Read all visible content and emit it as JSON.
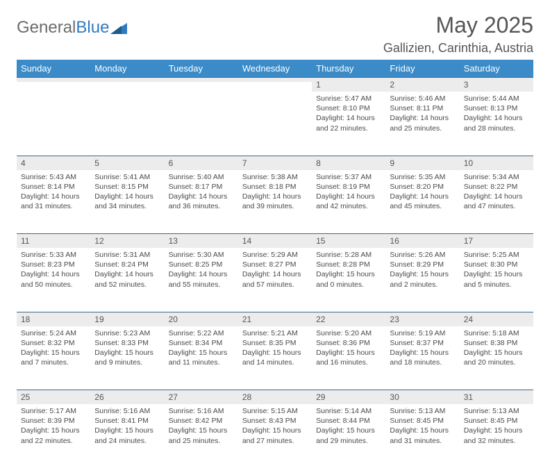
{
  "logo": {
    "word1": "General",
    "word2": "Blue"
  },
  "title": "May 2025",
  "location": "Gallizien, Carinthia, Austria",
  "colors": {
    "header_bg": "#3b8bc8",
    "header_text": "#ffffff",
    "daynum_bg": "#ececec",
    "border": "#3b6a8f",
    "text": "#4a4a4a",
    "logo_gray": "#6b6b6b",
    "logo_blue": "#2f7bbf"
  },
  "day_names": [
    "Sunday",
    "Monday",
    "Tuesday",
    "Wednesday",
    "Thursday",
    "Friday",
    "Saturday"
  ],
  "weeks": [
    [
      {
        "n": "",
        "sr": "",
        "ss": "",
        "dl": ""
      },
      {
        "n": "",
        "sr": "",
        "ss": "",
        "dl": ""
      },
      {
        "n": "",
        "sr": "",
        "ss": "",
        "dl": ""
      },
      {
        "n": "",
        "sr": "",
        "ss": "",
        "dl": ""
      },
      {
        "n": "1",
        "sr": "Sunrise: 5:47 AM",
        "ss": "Sunset: 8:10 PM",
        "dl": "Daylight: 14 hours and 22 minutes."
      },
      {
        "n": "2",
        "sr": "Sunrise: 5:46 AM",
        "ss": "Sunset: 8:11 PM",
        "dl": "Daylight: 14 hours and 25 minutes."
      },
      {
        "n": "3",
        "sr": "Sunrise: 5:44 AM",
        "ss": "Sunset: 8:13 PM",
        "dl": "Daylight: 14 hours and 28 minutes."
      }
    ],
    [
      {
        "n": "4",
        "sr": "Sunrise: 5:43 AM",
        "ss": "Sunset: 8:14 PM",
        "dl": "Daylight: 14 hours and 31 minutes."
      },
      {
        "n": "5",
        "sr": "Sunrise: 5:41 AM",
        "ss": "Sunset: 8:15 PM",
        "dl": "Daylight: 14 hours and 34 minutes."
      },
      {
        "n": "6",
        "sr": "Sunrise: 5:40 AM",
        "ss": "Sunset: 8:17 PM",
        "dl": "Daylight: 14 hours and 36 minutes."
      },
      {
        "n": "7",
        "sr": "Sunrise: 5:38 AM",
        "ss": "Sunset: 8:18 PM",
        "dl": "Daylight: 14 hours and 39 minutes."
      },
      {
        "n": "8",
        "sr": "Sunrise: 5:37 AM",
        "ss": "Sunset: 8:19 PM",
        "dl": "Daylight: 14 hours and 42 minutes."
      },
      {
        "n": "9",
        "sr": "Sunrise: 5:35 AM",
        "ss": "Sunset: 8:20 PM",
        "dl": "Daylight: 14 hours and 45 minutes."
      },
      {
        "n": "10",
        "sr": "Sunrise: 5:34 AM",
        "ss": "Sunset: 8:22 PM",
        "dl": "Daylight: 14 hours and 47 minutes."
      }
    ],
    [
      {
        "n": "11",
        "sr": "Sunrise: 5:33 AM",
        "ss": "Sunset: 8:23 PM",
        "dl": "Daylight: 14 hours and 50 minutes."
      },
      {
        "n": "12",
        "sr": "Sunrise: 5:31 AM",
        "ss": "Sunset: 8:24 PM",
        "dl": "Daylight: 14 hours and 52 minutes."
      },
      {
        "n": "13",
        "sr": "Sunrise: 5:30 AM",
        "ss": "Sunset: 8:25 PM",
        "dl": "Daylight: 14 hours and 55 minutes."
      },
      {
        "n": "14",
        "sr": "Sunrise: 5:29 AM",
        "ss": "Sunset: 8:27 PM",
        "dl": "Daylight: 14 hours and 57 minutes."
      },
      {
        "n": "15",
        "sr": "Sunrise: 5:28 AM",
        "ss": "Sunset: 8:28 PM",
        "dl": "Daylight: 15 hours and 0 minutes."
      },
      {
        "n": "16",
        "sr": "Sunrise: 5:26 AM",
        "ss": "Sunset: 8:29 PM",
        "dl": "Daylight: 15 hours and 2 minutes."
      },
      {
        "n": "17",
        "sr": "Sunrise: 5:25 AM",
        "ss": "Sunset: 8:30 PM",
        "dl": "Daylight: 15 hours and 5 minutes."
      }
    ],
    [
      {
        "n": "18",
        "sr": "Sunrise: 5:24 AM",
        "ss": "Sunset: 8:32 PM",
        "dl": "Daylight: 15 hours and 7 minutes."
      },
      {
        "n": "19",
        "sr": "Sunrise: 5:23 AM",
        "ss": "Sunset: 8:33 PM",
        "dl": "Daylight: 15 hours and 9 minutes."
      },
      {
        "n": "20",
        "sr": "Sunrise: 5:22 AM",
        "ss": "Sunset: 8:34 PM",
        "dl": "Daylight: 15 hours and 11 minutes."
      },
      {
        "n": "21",
        "sr": "Sunrise: 5:21 AM",
        "ss": "Sunset: 8:35 PM",
        "dl": "Daylight: 15 hours and 14 minutes."
      },
      {
        "n": "22",
        "sr": "Sunrise: 5:20 AM",
        "ss": "Sunset: 8:36 PM",
        "dl": "Daylight: 15 hours and 16 minutes."
      },
      {
        "n": "23",
        "sr": "Sunrise: 5:19 AM",
        "ss": "Sunset: 8:37 PM",
        "dl": "Daylight: 15 hours and 18 minutes."
      },
      {
        "n": "24",
        "sr": "Sunrise: 5:18 AM",
        "ss": "Sunset: 8:38 PM",
        "dl": "Daylight: 15 hours and 20 minutes."
      }
    ],
    [
      {
        "n": "25",
        "sr": "Sunrise: 5:17 AM",
        "ss": "Sunset: 8:39 PM",
        "dl": "Daylight: 15 hours and 22 minutes."
      },
      {
        "n": "26",
        "sr": "Sunrise: 5:16 AM",
        "ss": "Sunset: 8:41 PM",
        "dl": "Daylight: 15 hours and 24 minutes."
      },
      {
        "n": "27",
        "sr": "Sunrise: 5:16 AM",
        "ss": "Sunset: 8:42 PM",
        "dl": "Daylight: 15 hours and 25 minutes."
      },
      {
        "n": "28",
        "sr": "Sunrise: 5:15 AM",
        "ss": "Sunset: 8:43 PM",
        "dl": "Daylight: 15 hours and 27 minutes."
      },
      {
        "n": "29",
        "sr": "Sunrise: 5:14 AM",
        "ss": "Sunset: 8:44 PM",
        "dl": "Daylight: 15 hours and 29 minutes."
      },
      {
        "n": "30",
        "sr": "Sunrise: 5:13 AM",
        "ss": "Sunset: 8:45 PM",
        "dl": "Daylight: 15 hours and 31 minutes."
      },
      {
        "n": "31",
        "sr": "Sunrise: 5:13 AM",
        "ss": "Sunset: 8:45 PM",
        "dl": "Daylight: 15 hours and 32 minutes."
      }
    ]
  ]
}
